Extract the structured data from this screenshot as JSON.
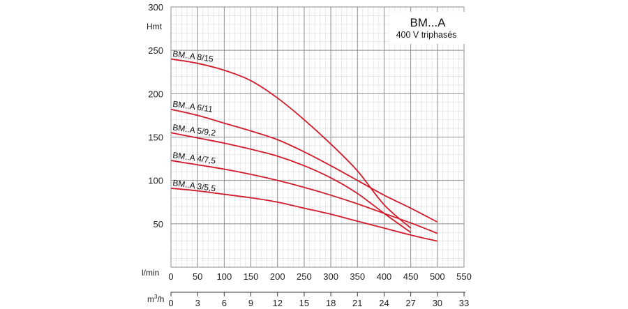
{
  "chart_data": {
    "type": "line",
    "title": "BM...A",
    "subtitle": "400 V triphasés",
    "ylabel": "Hmt",
    "xlabel": "l/min",
    "x2label_main": "m",
    "x2label_sup": "3",
    "x2label_end": "/h",
    "xlim": [
      0,
      550
    ],
    "ylim": [
      0,
      300
    ],
    "grid": true,
    "x_ticks": [
      0,
      50,
      100,
      150,
      200,
      250,
      300,
      350,
      400,
      450,
      500,
      550
    ],
    "y_ticks": [
      50,
      100,
      150,
      200,
      250,
      300
    ],
    "x2_ticks": [
      "0",
      "3",
      "6",
      "9",
      "12",
      "15",
      "18",
      "21",
      "24",
      "27",
      "30",
      "33"
    ],
    "series_color": "#d11a2a",
    "series": [
      {
        "name": "BM..A 8/15",
        "x": [
          0,
          50,
          100,
          150,
          200,
          250,
          300,
          350,
          400,
          450
        ],
        "y": [
          240,
          235,
          227,
          215,
          195,
          170,
          142,
          111,
          72,
          45
        ]
      },
      {
        "name": "BM..A 6/11",
        "x": [
          0,
          50,
          100,
          150,
          200,
          250,
          300,
          350,
          400,
          450,
          500
        ],
        "y": [
          182,
          175,
          166,
          157,
          147,
          133,
          117,
          100,
          83,
          68,
          52
        ]
      },
      {
        "name": "BM..A 5/9,2",
        "x": [
          0,
          50,
          100,
          150,
          200,
          250,
          300,
          350,
          400,
          450
        ],
        "y": [
          155,
          149,
          143,
          136,
          128,
          117,
          103,
          85,
          62,
          40
        ]
      },
      {
        "name": "BM..A 4/7,5",
        "x": [
          0,
          50,
          100,
          150,
          200,
          250,
          300,
          350,
          400,
          450,
          500
        ],
        "y": [
          123,
          118,
          113,
          107,
          100,
          92,
          83,
          73,
          62,
          51,
          39
        ]
      },
      {
        "name": "BM..A 3/5,5",
        "x": [
          0,
          50,
          100,
          150,
          200,
          250,
          300,
          350,
          400,
          450,
          500
        ],
        "y": [
          91,
          88,
          84,
          80,
          75,
          68,
          61,
          53,
          45,
          37,
          30
        ]
      }
    ]
  }
}
